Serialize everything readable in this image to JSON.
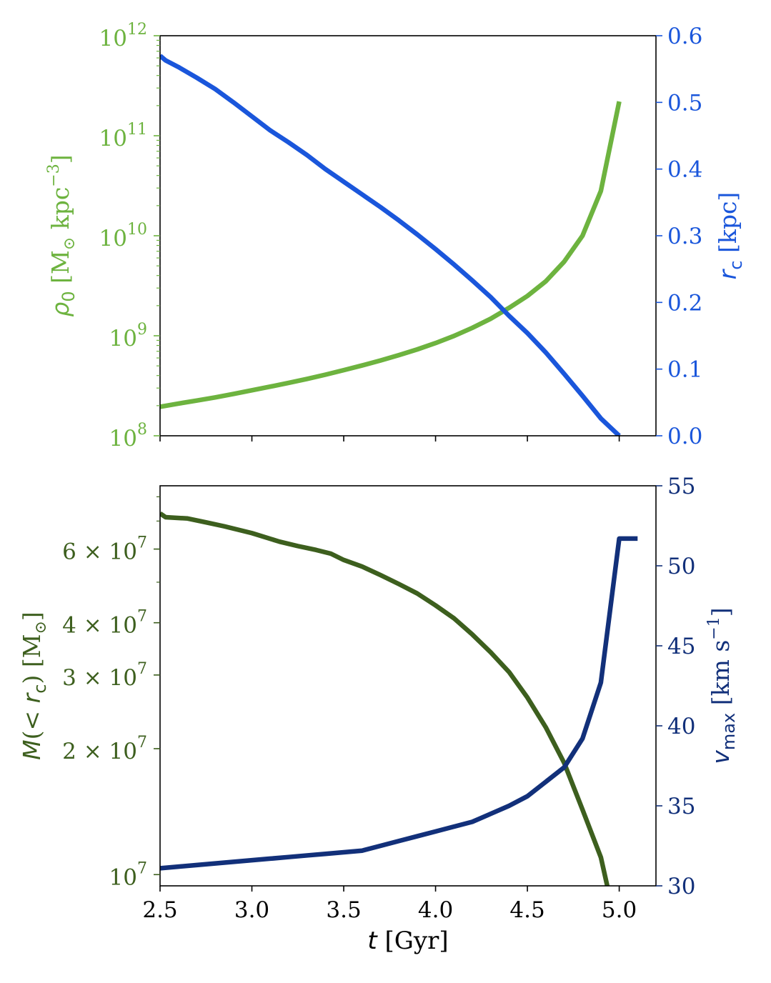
{
  "chart_data": [
    {
      "type": "line",
      "panel": "top",
      "x_range": [
        2.5,
        5.2
      ],
      "left_axis": {
        "label_symbol": "ρ",
        "label_sub": "0",
        "label_text": " [M",
        "label_odot": "⊙",
        "label_units": " kpc",
        "label_sup": "−3",
        "label_close": "]",
        "scale": "log",
        "ylim": [
          100000000,
          1000000000000
        ],
        "ticks": [
          {
            "value": 100000000,
            "base": "10",
            "exp": "8"
          },
          {
            "value": 1000000000,
            "base": "10",
            "exp": "9"
          },
          {
            "value": 10000000000,
            "base": "10",
            "exp": "10"
          },
          {
            "value": 100000000000,
            "base": "10",
            "exp": "11"
          },
          {
            "value": 1000000000000,
            "base": "10",
            "exp": "12"
          }
        ]
      },
      "right_axis": {
        "label_symbol": "r",
        "label_sub": "c",
        "label_text": " [kpc]",
        "scale": "linear",
        "ylim": [
          0.0,
          0.6
        ],
        "ticks": [
          "0.0",
          "0.1",
          "0.2",
          "0.3",
          "0.4",
          "0.5",
          "0.6"
        ]
      },
      "series": [
        {
          "axis": "left",
          "color": "#6db33f",
          "x": [
            2.5,
            2.6,
            2.7,
            2.8,
            2.9,
            3.0,
            3.1,
            3.2,
            3.3,
            3.4,
            3.5,
            3.6,
            3.7,
            3.8,
            3.9,
            4.0,
            4.1,
            4.2,
            4.3,
            4.4,
            4.5,
            4.6,
            4.7,
            4.8,
            4.9,
            5.0
          ],
          "y": [
            195000000,
            210000000,
            225000000,
            242000000,
            262000000,
            285000000,
            310000000,
            338000000,
            370000000,
            408000000,
            453000000,
            505000000,
            566000000,
            640000000,
            730000000,
            845000000,
            995000000,
            1200000000,
            1480000000,
            1900000000,
            2500000000,
            3500000000,
            5500000000,
            10000000000,
            28000000000,
            220000000000
          ]
        },
        {
          "axis": "right",
          "color": "#1a56db",
          "x": [
            2.5,
            2.53,
            2.6,
            2.7,
            2.8,
            2.9,
            3.0,
            3.1,
            3.2,
            3.3,
            3.4,
            3.5,
            3.6,
            3.7,
            3.8,
            3.9,
            4.0,
            4.1,
            4.2,
            4.3,
            4.4,
            4.5,
            4.6,
            4.7,
            4.8,
            4.9,
            5.0
          ],
          "y": [
            0.57,
            0.563,
            0.553,
            0.537,
            0.52,
            0.5,
            0.479,
            0.458,
            0.44,
            0.421,
            0.4,
            0.381,
            0.362,
            0.343,
            0.323,
            0.302,
            0.28,
            0.257,
            0.233,
            0.208,
            0.18,
            0.154,
            0.125,
            0.093,
            0.06,
            0.026,
            0.0
          ]
        }
      ]
    },
    {
      "type": "line",
      "panel": "bottom",
      "x_range": [
        2.5,
        5.2
      ],
      "xlabel_var": "t",
      "xlabel_text": " [Gyr]",
      "x_ticks": [
        "2.5",
        "3.0",
        "3.5",
        "4.0",
        "4.5",
        "5.0"
      ],
      "left_axis": {
        "label_symbol": "M",
        "label_open": "(< ",
        "label_r": "r",
        "label_sub": "c",
        "label_text": ") [M",
        "label_odot": "⊙",
        "label_close": "]",
        "scale": "log",
        "ylim": [
          9400000,
          85000000
        ],
        "ticks": [
          {
            "value": 10000000,
            "base": "10",
            "exp": "7"
          },
          {
            "value": 20000000,
            "base": "2 × 10",
            "exp": "7"
          },
          {
            "value": 30000000,
            "base": "3 × 10",
            "exp": "7"
          },
          {
            "value": 40000000,
            "base": "4 × 10",
            "exp": "7"
          },
          {
            "value": 60000000,
            "base": "6 × 10",
            "exp": "7"
          }
        ]
      },
      "right_axis": {
        "label_symbol": "v",
        "label_sub": "max",
        "label_text": " [km s",
        "label_sup": "−1",
        "label_close": "]",
        "scale": "linear",
        "ylim": [
          30,
          55
        ],
        "ticks": [
          "30",
          "35",
          "40",
          "45",
          "50",
          "55"
        ]
      },
      "series": [
        {
          "axis": "left",
          "color": "#3d5f1e",
          "x": [
            2.5,
            2.53,
            2.65,
            2.75,
            2.85,
            3.0,
            3.15,
            3.25,
            3.35,
            3.43,
            3.5,
            3.6,
            3.7,
            3.8,
            3.9,
            4.0,
            4.1,
            4.2,
            4.3,
            4.4,
            4.5,
            4.6,
            4.7,
            4.8,
            4.9,
            5.0
          ],
          "y": [
            73000000,
            71500000,
            71000000,
            69500000,
            68000000,
            65500000,
            62500000,
            61000000,
            59700000,
            58500000,
            56500000,
            54500000,
            52000000,
            49500000,
            47000000,
            44000000,
            41000000,
            37500000,
            34000000,
            30500000,
            26500000,
            22500000,
            18500000,
            14300000,
            11000000,
            7000000
          ]
        },
        {
          "axis": "right",
          "color": "#12307a",
          "x": [
            2.5,
            2.6,
            2.7,
            2.8,
            2.9,
            3.0,
            3.1,
            3.2,
            3.3,
            3.4,
            3.5,
            3.6,
            3.7,
            3.8,
            3.9,
            4.0,
            4.1,
            4.2,
            4.3,
            4.4,
            4.5,
            4.6,
            4.7,
            4.8,
            4.9,
            5.0,
            5.1
          ],
          "y": [
            31.1,
            31.2,
            31.3,
            31.4,
            31.5,
            31.6,
            31.7,
            31.8,
            31.9,
            32.0,
            32.1,
            32.2,
            32.5,
            32.8,
            33.1,
            33.4,
            33.7,
            34.0,
            34.5,
            35.0,
            35.6,
            36.5,
            37.4,
            39.2,
            42.7,
            51.7,
            51.7
          ]
        }
      ]
    }
  ]
}
